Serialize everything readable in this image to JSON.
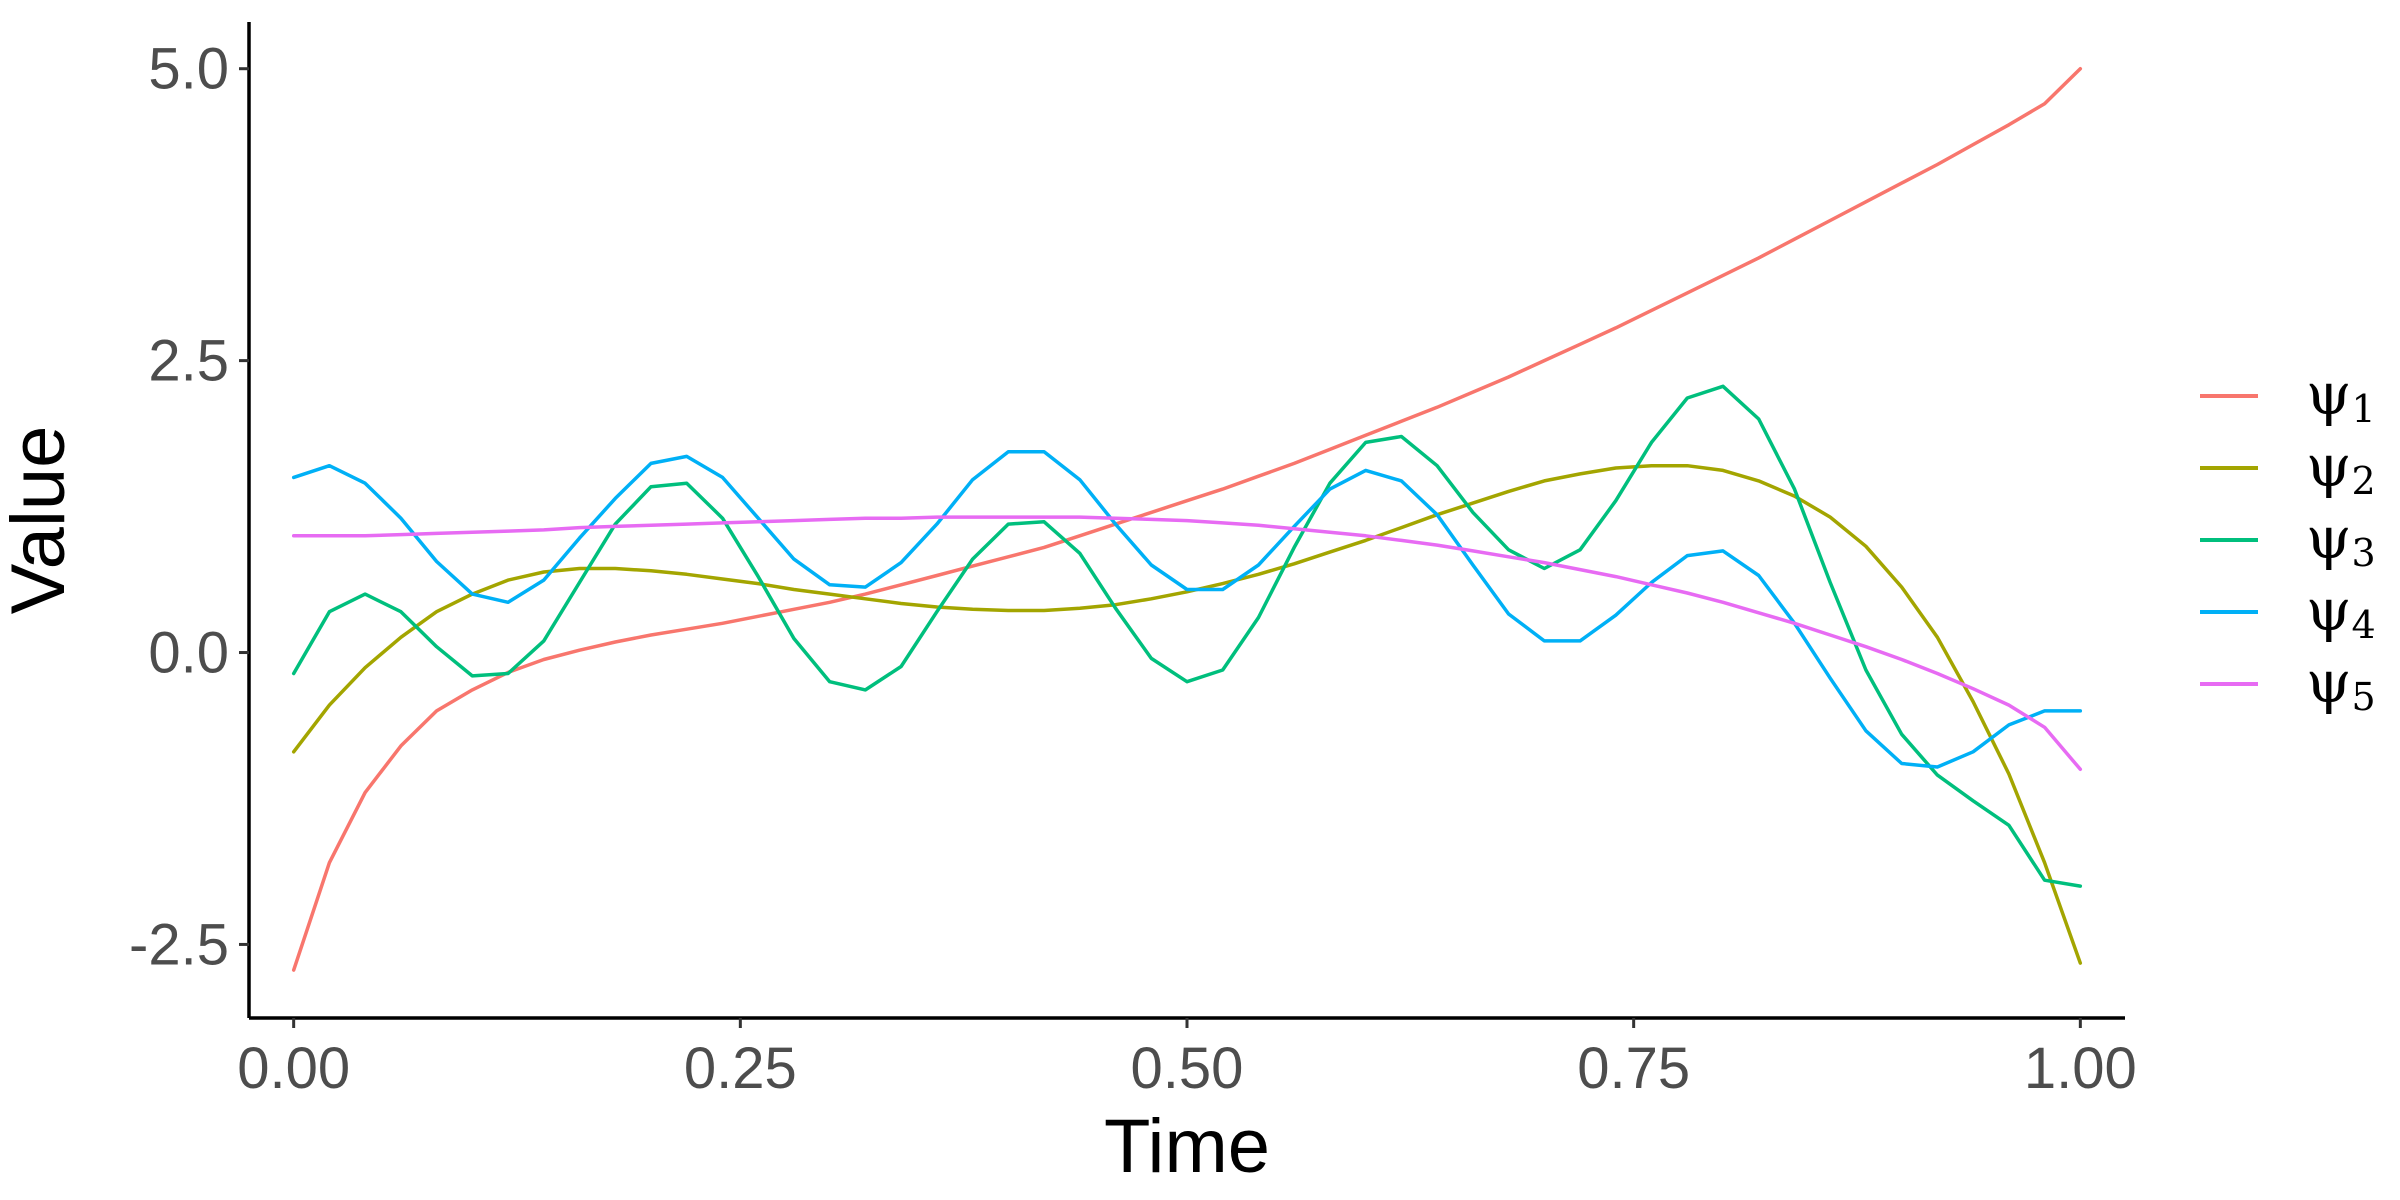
{
  "chart_data": {
    "type": "line",
    "xlabel": "Time",
    "ylabel": "Value",
    "xlim": [
      -0.025,
      1.025
    ],
    "ylim": [
      -3.13,
      5.4
    ],
    "x_ticks": [
      0.0,
      0.25,
      0.5,
      0.75,
      1.0
    ],
    "x_tick_labels": [
      "0.00",
      "0.25",
      "0.50",
      "0.75",
      "1.00"
    ],
    "y_ticks": [
      -2.5,
      0.0,
      2.5,
      5.0
    ],
    "y_tick_labels": [
      "-2.5",
      "0.0",
      "2.5",
      "5.0"
    ],
    "grid": false,
    "legend_position": "right",
    "x": [
      0.0,
      0.02,
      0.04,
      0.06,
      0.08,
      0.1,
      0.12,
      0.14,
      0.16,
      0.18,
      0.2,
      0.22,
      0.24,
      0.26,
      0.28,
      0.3,
      0.32,
      0.34,
      0.36,
      0.38,
      0.4,
      0.42,
      0.44,
      0.46,
      0.48,
      0.5,
      0.52,
      0.54,
      0.56,
      0.58,
      0.6,
      0.62,
      0.64,
      0.66,
      0.68,
      0.7,
      0.72,
      0.74,
      0.76,
      0.78,
      0.8,
      0.82,
      0.84,
      0.86,
      0.88,
      0.9,
      0.92,
      0.94,
      0.96,
      0.98,
      1.0
    ],
    "series": [
      {
        "name": "ψ1",
        "symbol": "ψ",
        "subscript": "1",
        "color": "#F8766D",
        "values": [
          -2.72,
          -1.8,
          -1.2,
          -0.8,
          -0.5,
          -0.32,
          -0.17,
          -0.06,
          0.02,
          0.09,
          0.15,
          0.2,
          0.25,
          0.31,
          0.37,
          0.43,
          0.5,
          0.58,
          0.66,
          0.74,
          0.82,
          0.9,
          1.0,
          1.1,
          1.2,
          1.3,
          1.4,
          1.51,
          1.62,
          1.74,
          1.86,
          1.98,
          2.1,
          2.23,
          2.36,
          2.5,
          2.64,
          2.78,
          2.93,
          3.08,
          3.23,
          3.38,
          3.54,
          3.7,
          3.86,
          4.02,
          4.18,
          4.35,
          4.52,
          4.7,
          5.0
        ]
      },
      {
        "name": "ψ2",
        "symbol": "ψ",
        "subscript": "2",
        "color": "#A3A500",
        "values": [
          -0.85,
          -0.45,
          -0.13,
          0.13,
          0.35,
          0.5,
          0.62,
          0.69,
          0.72,
          0.72,
          0.7,
          0.67,
          0.63,
          0.59,
          0.54,
          0.5,
          0.46,
          0.42,
          0.39,
          0.37,
          0.36,
          0.36,
          0.38,
          0.41,
          0.46,
          0.52,
          0.59,
          0.67,
          0.76,
          0.86,
          0.96,
          1.07,
          1.18,
          1.28,
          1.38,
          1.47,
          1.53,
          1.58,
          1.6,
          1.6,
          1.56,
          1.47,
          1.34,
          1.16,
          0.91,
          0.56,
          0.13,
          -0.42,
          -1.04,
          -1.8,
          -2.66
        ]
      },
      {
        "name": "ψ3",
        "symbol": "ψ",
        "subscript": "3",
        "color": "#00BF7D",
        "values": [
          -0.18,
          0.35,
          0.5,
          0.35,
          0.05,
          -0.2,
          -0.18,
          0.1,
          0.6,
          1.1,
          1.42,
          1.45,
          1.15,
          0.65,
          0.12,
          -0.25,
          -0.32,
          -0.12,
          0.35,
          0.8,
          1.1,
          1.12,
          0.85,
          0.38,
          -0.05,
          -0.25,
          -0.15,
          0.3,
          0.9,
          1.45,
          1.8,
          1.85,
          1.6,
          1.2,
          0.88,
          0.72,
          0.88,
          1.3,
          1.8,
          2.18,
          2.28,
          2.0,
          1.4,
          0.6,
          -0.15,
          -0.7,
          -1.05,
          -1.27,
          -1.48,
          -1.95,
          -2.0
        ]
      },
      {
        "name": "ψ4",
        "symbol": "ψ",
        "subscript": "4",
        "color": "#00B0F6",
        "values": [
          1.5,
          1.6,
          1.45,
          1.15,
          0.78,
          0.5,
          0.43,
          0.62,
          0.98,
          1.32,
          1.62,
          1.68,
          1.5,
          1.15,
          0.8,
          0.58,
          0.56,
          0.77,
          1.1,
          1.48,
          1.72,
          1.72,
          1.48,
          1.1,
          0.75,
          0.54,
          0.54,
          0.75,
          1.08,
          1.4,
          1.56,
          1.47,
          1.18,
          0.75,
          0.33,
          0.1,
          0.1,
          0.32,
          0.6,
          0.83,
          0.87,
          0.66,
          0.25,
          -0.22,
          -0.67,
          -0.95,
          -0.98,
          -0.85,
          -0.62,
          -0.5,
          -0.5
        ]
      },
      {
        "name": "ψ5",
        "symbol": "ψ",
        "subscript": "5",
        "color": "#E76BF3",
        "values": [
          1.0,
          1.0,
          1.0,
          1.01,
          1.02,
          1.03,
          1.04,
          1.05,
          1.07,
          1.08,
          1.09,
          1.1,
          1.11,
          1.12,
          1.13,
          1.14,
          1.15,
          1.15,
          1.16,
          1.16,
          1.16,
          1.16,
          1.16,
          1.15,
          1.14,
          1.13,
          1.11,
          1.09,
          1.06,
          1.03,
          1.0,
          0.96,
          0.92,
          0.87,
          0.82,
          0.77,
          0.71,
          0.65,
          0.58,
          0.51,
          0.43,
          0.34,
          0.25,
          0.15,
          0.05,
          -0.06,
          -0.18,
          -0.31,
          -0.45,
          -0.64,
          -1.0
        ]
      }
    ]
  }
}
